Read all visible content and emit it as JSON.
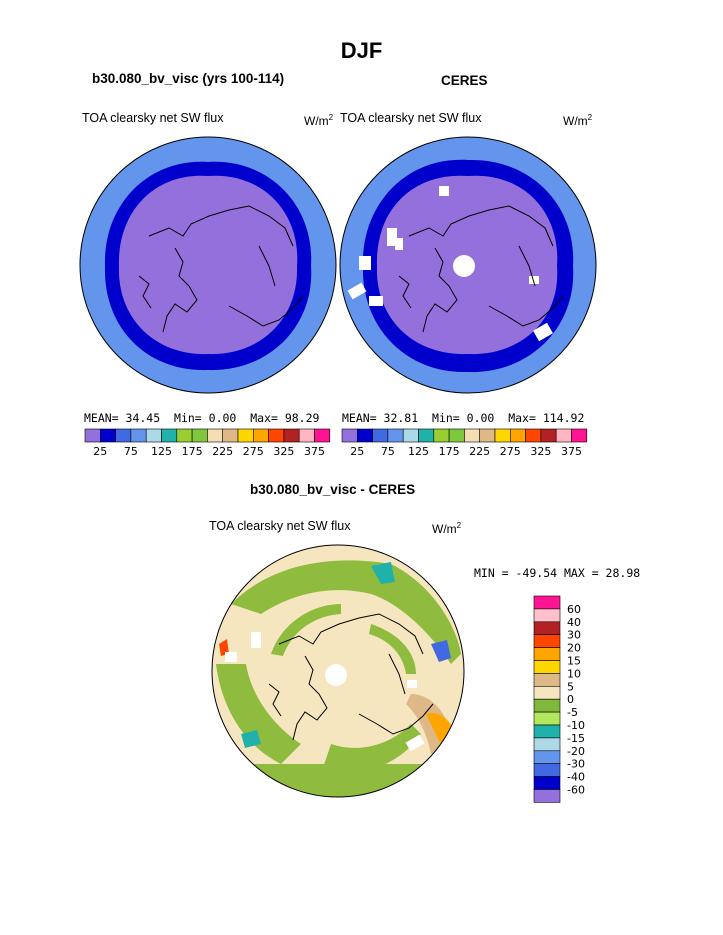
{
  "page": {
    "title": "DJF"
  },
  "panels": [
    {
      "title": "b30.080_bv_visc (yrs 100-114)",
      "variable": "TOA clearsky net SW flux",
      "units": "W/m",
      "units_sup": "2",
      "stats": {
        "mean": "MEAN=  34.45",
        "min": "Min=   0.00",
        "max": "Max=  98.29"
      }
    },
    {
      "title": "CERES",
      "variable": "TOA clearsky net SW flux",
      "units": "W/m",
      "units_sup": "2",
      "stats": {
        "mean": "MEAN=  32.81",
        "min": "Min=   0.00",
        "max": "Max= 114.92"
      }
    },
    {
      "title": "b30.080_bv_visc - CERES",
      "variable": "TOA clearsky net SW flux",
      "units": "W/m",
      "units_sup": "2",
      "stats": {
        "text": "MIN = -49.54 MAX =  28.98"
      }
    }
  ],
  "colors": {
    "abs_palette": [
      "#9370db",
      "#0000cd",
      "#4169e1",
      "#6495ed",
      "#add8e6",
      "#20b2aa",
      "#9acd32",
      "#7fc73d",
      "#f5deb3",
      "#deb887",
      "#ffd700",
      "#ffa500",
      "#ff4500",
      "#b22222",
      "#ffb6c1",
      "#ff1493"
    ],
    "diff_palette": [
      "#9370db",
      "#0000cd",
      "#4169e1",
      "#6495ed",
      "#add8e6",
      "#20b2aa",
      "#b3e85c",
      "#7fb83a",
      "#f5e6c0",
      "#deb887",
      "#ffd700",
      "#ffa500",
      "#ff4500",
      "#b22222",
      "#ffc0cb",
      "#ff1493"
    ],
    "map_outer": "#6495ed",
    "map_ring": "#0000cd",
    "map_inner": "#9370db",
    "diff_base": "#f5e6c0",
    "diff_green": "#8fbc3f"
  },
  "colorbar_abs_labels": [
    "25",
    "75",
    "125",
    "175",
    "225",
    "275",
    "325",
    "375"
  ],
  "colorbar_diff_labels": [
    "60",
    "40",
    "30",
    "20",
    "15",
    "10",
    "5",
    "0",
    "-5",
    "-10",
    "-15",
    "-20",
    "-30",
    "-40",
    "-60"
  ]
}
